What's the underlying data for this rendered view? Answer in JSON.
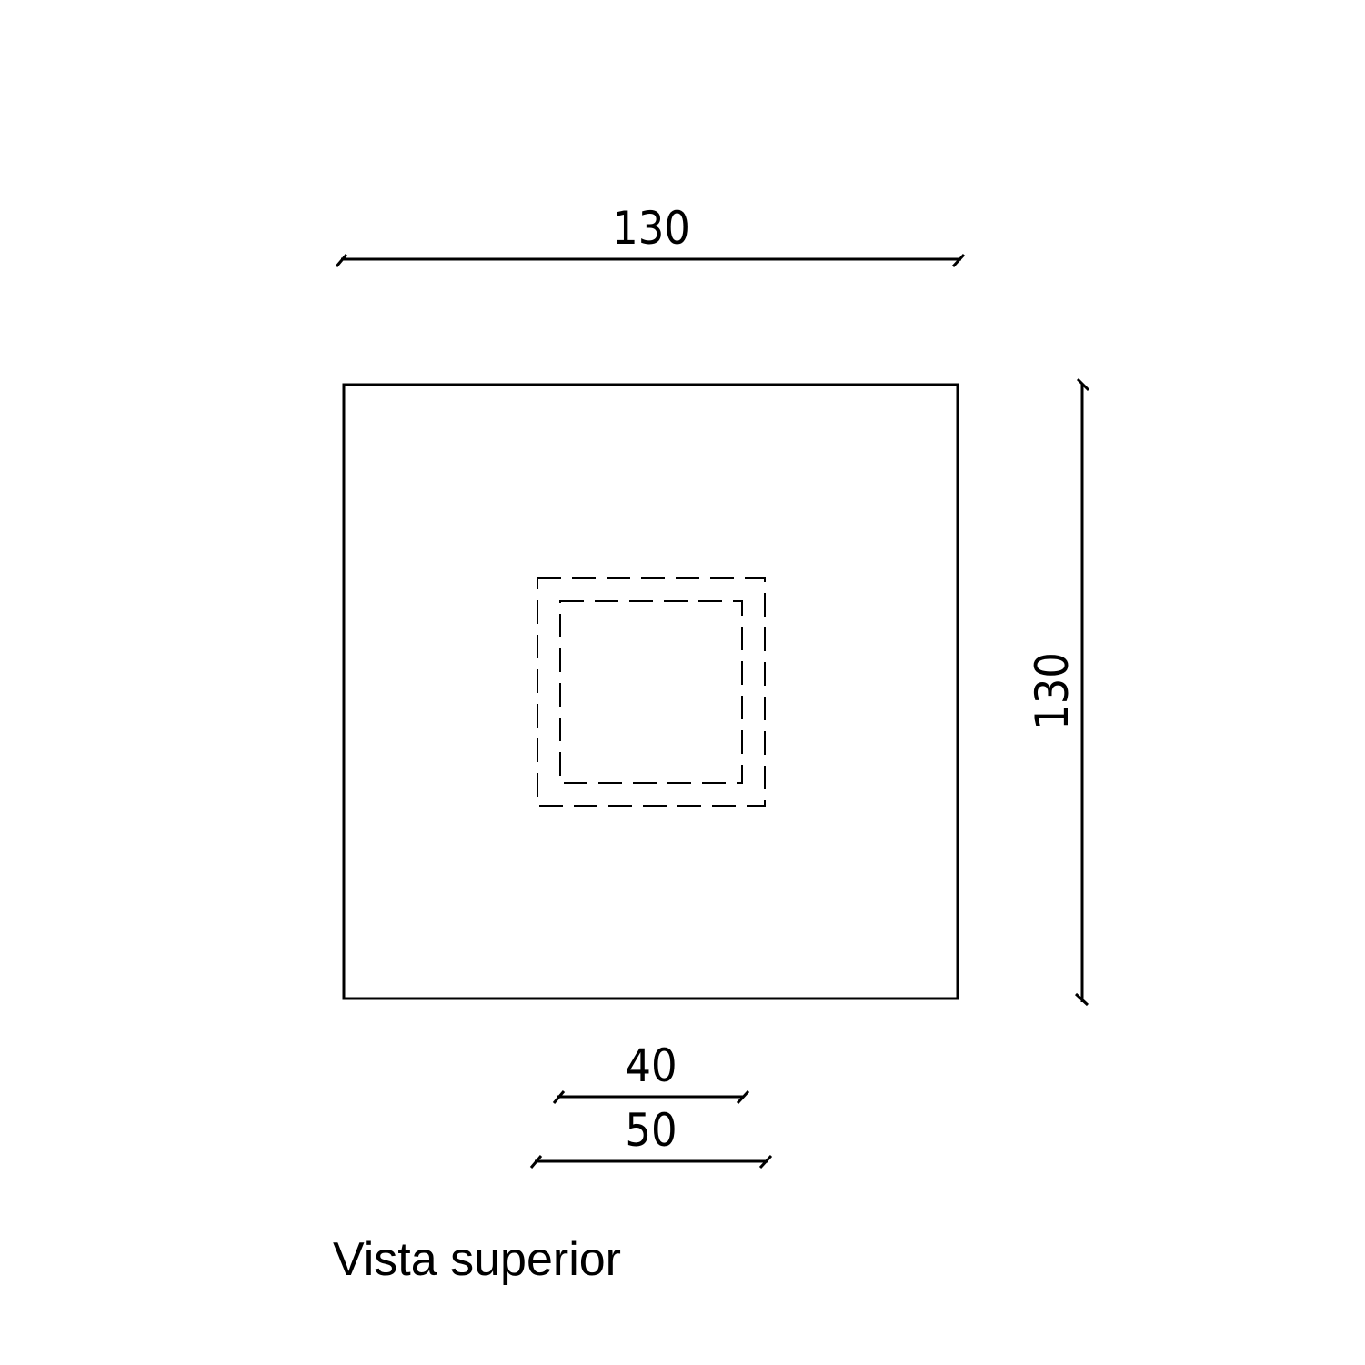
{
  "drawing": {
    "title": "Vista superior",
    "line_color": "#000000",
    "background": "#ffffff"
  },
  "dimensions": {
    "top_width": "130",
    "right_height": "130",
    "inner_40": "40",
    "inner_50": "50"
  }
}
